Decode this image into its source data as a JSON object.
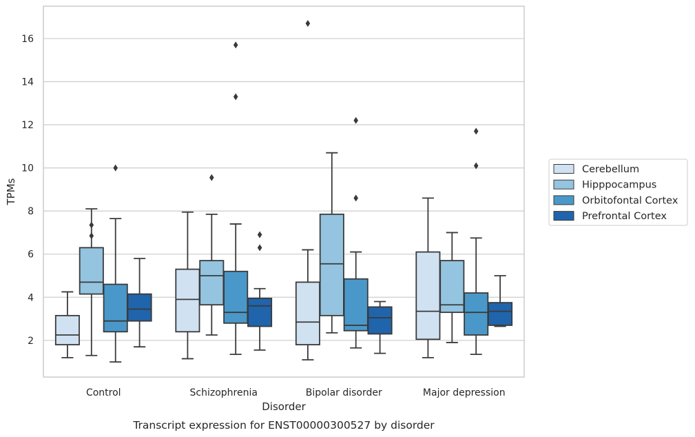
{
  "chart_data": {
    "type": "box",
    "caption": "Transcript expression for ENST00000300527 by disorder",
    "xlabel": "Disorder",
    "ylabel": "TPMs",
    "ylim": [
      0.3,
      17.5
    ],
    "yticks": [
      2,
      4,
      6,
      8,
      10,
      12,
      14,
      16
    ],
    "grid": "horizontal",
    "legend_position": "right",
    "categories": [
      "Control",
      "Schizophrenia",
      "Bipolar disorder",
      "Major depression"
    ],
    "series": [
      {
        "name": "Cerebellum",
        "color": "#d0e1f2",
        "boxes": [
          {
            "whislo": 1.2,
            "q1": 1.8,
            "med": 2.25,
            "q3": 3.15,
            "whishi": 4.25,
            "fliers": []
          },
          {
            "whislo": 1.15,
            "q1": 2.4,
            "med": 3.9,
            "q3": 5.3,
            "whishi": 7.95,
            "fliers": []
          },
          {
            "whislo": 1.1,
            "q1": 1.8,
            "med": 2.85,
            "q3": 4.7,
            "whishi": 6.2,
            "fliers": [
              16.7
            ]
          },
          {
            "whislo": 1.2,
            "q1": 2.05,
            "med": 3.35,
            "q3": 6.1,
            "whishi": 8.6,
            "fliers": []
          }
        ]
      },
      {
        "name": "Hipppocampus",
        "color": "#94c4df",
        "boxes": [
          {
            "whislo": 1.3,
            "q1": 4.15,
            "med": 4.7,
            "q3": 6.3,
            "whishi": 8.1,
            "fliers": [
              6.85,
              7.35
            ]
          },
          {
            "whislo": 2.25,
            "q1": 3.65,
            "med": 5.0,
            "q3": 5.7,
            "whishi": 7.85,
            "fliers": [
              9.55
            ]
          },
          {
            "whislo": 2.35,
            "q1": 3.15,
            "med": 5.55,
            "q3": 7.85,
            "whishi": 10.7,
            "fliers": []
          },
          {
            "whislo": 1.9,
            "q1": 3.3,
            "med": 3.65,
            "q3": 5.7,
            "whishi": 7.0,
            "fliers": []
          }
        ]
      },
      {
        "name": "Orbitofontal Cortex",
        "color": "#4a98c9",
        "boxes": [
          {
            "whislo": 1.0,
            "q1": 2.4,
            "med": 2.9,
            "q3": 4.6,
            "whishi": 7.65,
            "fliers": [
              10.0
            ]
          },
          {
            "whislo": 1.35,
            "q1": 2.8,
            "med": 3.3,
            "q3": 5.2,
            "whishi": 7.4,
            "fliers": [
              13.3,
              15.7
            ]
          },
          {
            "whislo": 1.65,
            "q1": 2.45,
            "med": 2.7,
            "q3": 4.85,
            "whishi": 6.1,
            "fliers": [
              8.6,
              12.2
            ]
          },
          {
            "whislo": 1.35,
            "q1": 2.25,
            "med": 3.3,
            "q3": 4.2,
            "whishi": 6.75,
            "fliers": [
              10.1,
              11.7
            ]
          }
        ]
      },
      {
        "name": "Prefrontal Cortex",
        "color": "#2064ab",
        "boxes": [
          {
            "whislo": 1.7,
            "q1": 2.9,
            "med": 3.45,
            "q3": 4.15,
            "whishi": 5.8,
            "fliers": []
          },
          {
            "whislo": 1.55,
            "q1": 2.65,
            "med": 3.6,
            "q3": 3.95,
            "whishi": 4.4,
            "fliers": [
              6.3,
              6.9
            ]
          },
          {
            "whislo": 1.4,
            "q1": 2.3,
            "med": 3.05,
            "q3": 3.55,
            "whishi": 3.8,
            "fliers": []
          },
          {
            "whislo": 2.65,
            "q1": 2.7,
            "med": 3.35,
            "q3": 3.75,
            "whishi": 5.0,
            "fliers": []
          }
        ]
      }
    ]
  }
}
